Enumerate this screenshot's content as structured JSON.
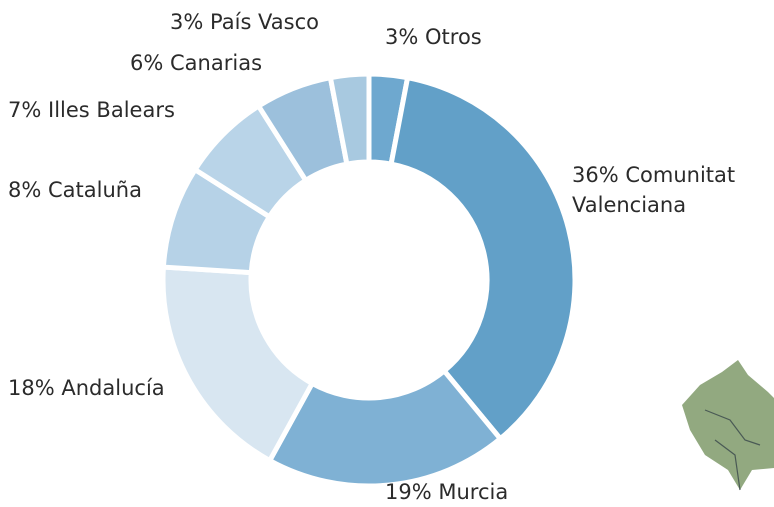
{
  "chart_data": {
    "type": "donut",
    "categories": [
      "Otros",
      "Comunitat Valenciana",
      "Murcia",
      "Andalucía",
      "Cataluña",
      "Illes Balears",
      "Canarias",
      "País Vasco"
    ],
    "values": [
      3,
      36,
      19,
      18,
      8,
      7,
      6,
      3
    ],
    "value_labels": [
      "3%",
      "36%",
      "19%",
      "18%",
      "8%",
      "7%",
      "6%",
      "3%"
    ],
    "colors": [
      "#6ea8cf",
      "#62a0c8",
      "#7fb1d4",
      "#d8e6f1",
      "#b6d2e7",
      "#b9d4e8",
      "#9cc0dc",
      "#a8c9e0"
    ]
  }
}
